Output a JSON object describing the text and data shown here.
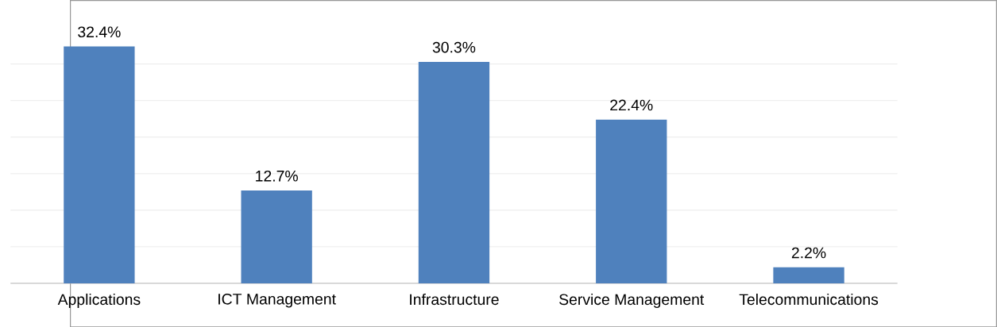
{
  "chart_data": {
    "type": "bar",
    "categories": [
      "Applications",
      "ICT Management",
      "Infrastructure",
      "Service Management",
      "Telecommunications"
    ],
    "values": [
      32.4,
      12.7,
      30.3,
      22.4,
      2.2
    ],
    "value_labels": [
      "32.4%",
      "12.7%",
      "30.3%",
      "22.4%",
      "2.2%"
    ],
    "color": "#4f81bd",
    "grid": "y",
    "tick_labels": "x"
  }
}
